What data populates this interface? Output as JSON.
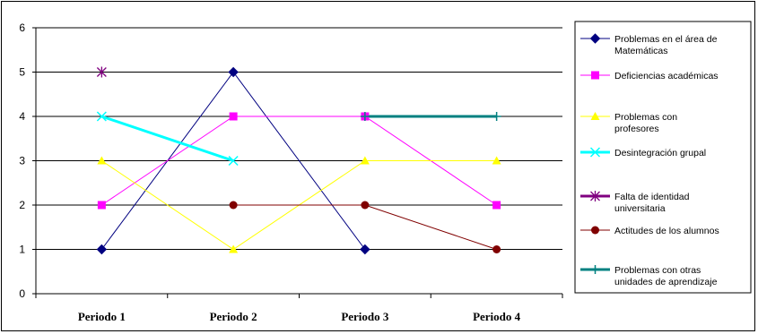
{
  "chart_data": {
    "type": "line",
    "title": "",
    "xlabel": "",
    "ylabel": "",
    "categories": [
      "Periodo 1",
      "Periodo 2",
      "Periodo 3",
      "Periodo 4"
    ],
    "ylim": [
      0,
      6
    ],
    "yticks": [
      0,
      1,
      2,
      3,
      4,
      5,
      6
    ],
    "grid": "horizontal",
    "legend_position": "right",
    "series": [
      {
        "name": "Problemas en el área de Matemáticas",
        "legend_lines": [
          "Problemas en el área de",
          "Matemáticas"
        ],
        "color": "#000080",
        "marker": "diamond",
        "line_width": 1,
        "values": [
          1,
          5,
          1,
          null
        ]
      },
      {
        "name": "Deficiencias académicas",
        "legend_lines": [
          "Deficiencias académicas"
        ],
        "color": "#FF00FF",
        "marker": "square",
        "line_width": 1,
        "values": [
          2,
          4,
          4,
          2
        ]
      },
      {
        "name": "Problemas con profesores",
        "legend_lines": [
          "Problemas con",
          "profesores"
        ],
        "color": "#FFFF00",
        "marker": "triangle",
        "line_width": 1,
        "values": [
          3,
          1,
          3,
          3
        ]
      },
      {
        "name": "Desintegración grupal",
        "legend_lines": [
          "Desintegración grupal"
        ],
        "color": "#00FFFF",
        "marker": "x",
        "line_width": 3,
        "values": [
          4,
          3,
          null,
          null
        ]
      },
      {
        "name": "Falta de identidad universitaria",
        "legend_lines": [
          "Falta de identidad",
          "universitaria"
        ],
        "color": "#800080",
        "marker": "star",
        "line_width": 3,
        "values": [
          5,
          null,
          null,
          null
        ]
      },
      {
        "name": "Actitudes de los alumnos",
        "legend_lines": [
          "Actitudes de los alumnos"
        ],
        "color": "#800000",
        "marker": "circle",
        "line_width": 1,
        "values": [
          null,
          2,
          2,
          1
        ]
      },
      {
        "name": "Problemas con otras unidades de aprendizaje",
        "legend_lines": [
          "Problemas con otras",
          "unidades de aprendizaje"
        ],
        "color": "#008080",
        "marker": "plus",
        "line_width": 3,
        "values": [
          null,
          null,
          4,
          4
        ]
      }
    ]
  }
}
